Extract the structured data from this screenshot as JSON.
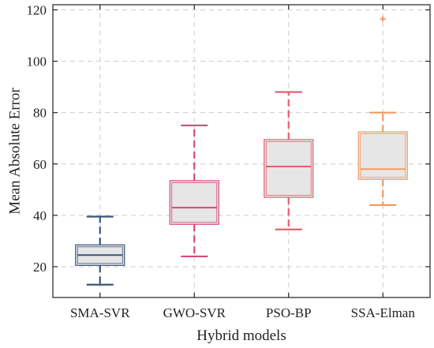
{
  "chart_data": {
    "type": "box",
    "xlabel": "Hybrid models",
    "ylabel": "Mean Absolute Error",
    "ylim": [
      8,
      122
    ],
    "yticks": [
      20,
      40,
      60,
      80,
      100,
      120
    ],
    "grid": true,
    "categories": [
      "SMA-SVR",
      "GWO-SVR",
      "PSO-BP",
      "SSA-Elman"
    ],
    "boxes": [
      {
        "min": 13,
        "q1": 20.5,
        "median": 24.5,
        "q3": 28.5,
        "max": 39.5,
        "outliers": []
      },
      {
        "min": 24,
        "q1": 36.5,
        "median": 43,
        "q3": 53.5,
        "max": 75,
        "outliers": []
      },
      {
        "min": 34.5,
        "q1": 47,
        "median": 59,
        "q3": 69.5,
        "max": 88,
        "outliers": []
      },
      {
        "min": 44,
        "q1": 54,
        "median": 58,
        "q3": 72.5,
        "max": 80,
        "outliers": [
          116.5
        ]
      }
    ],
    "colors": {
      "box_fill": "#e6e6e6",
      "grid": "#cccccc",
      "series": [
        "#3c5478",
        "#d44a7a",
        "#ee5a6e",
        "#f59a62"
      ]
    }
  }
}
